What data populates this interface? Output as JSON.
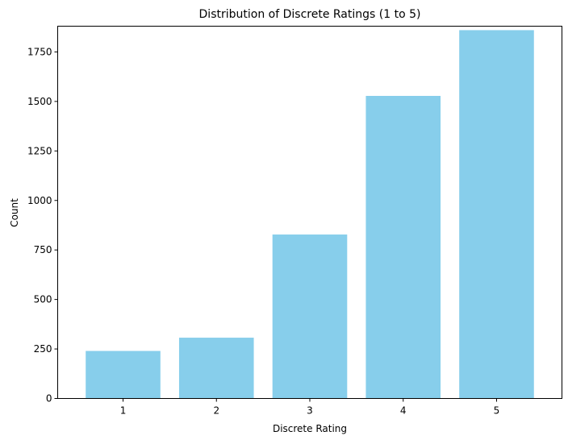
{
  "chart_data": {
    "type": "bar",
    "title": "Distribution of Discrete Ratings (1 to 5)",
    "xlabel": "Discrete Rating",
    "ylabel": "Count",
    "categories": [
      "1",
      "2",
      "3",
      "4",
      "5"
    ],
    "values": [
      240,
      307,
      828,
      1528,
      1860
    ],
    "ylim": [
      0,
      1880
    ],
    "yticks": [
      0,
      250,
      500,
      750,
      1000,
      1250,
      1500,
      1750
    ],
    "bar_color": "#87ceeb",
    "grid": false,
    "legend": "none"
  }
}
